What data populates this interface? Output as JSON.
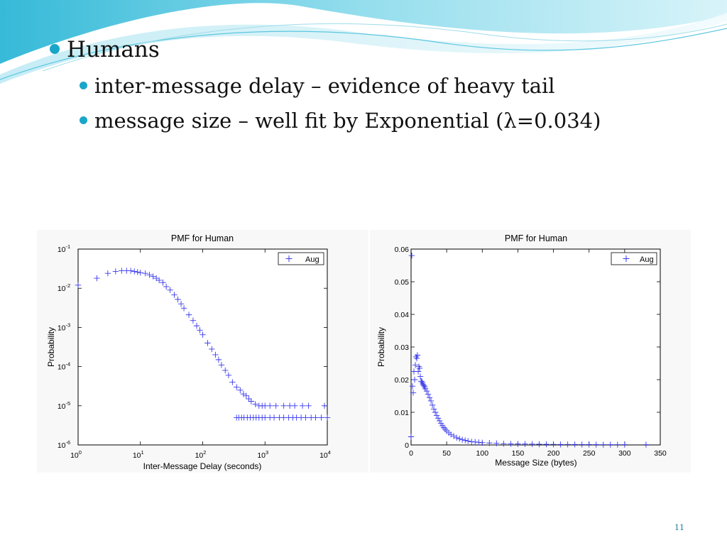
{
  "bullets": {
    "level1": "Humans",
    "level2": [
      "inter-message delay – evidence of heavy tail",
      "message size – well fit by Exponential (λ=0.034)"
    ]
  },
  "page_number": "11",
  "colors": {
    "accent": "#1aa6c9",
    "series": "#3a3aee"
  },
  "chart_data": [
    {
      "type": "scatter",
      "title": "PMF for Human",
      "xlabel": "Inter-Message Delay (seconds)",
      "ylabel": "Probability",
      "xscale": "log",
      "yscale": "log",
      "xlim": [
        1,
        10000
      ],
      "ylim": [
        1e-06,
        0.1
      ],
      "x_ticks": [
        {
          "base": "10",
          "exp": "0"
        },
        {
          "base": "10",
          "exp": "1"
        },
        {
          "base": "10",
          "exp": "2"
        },
        {
          "base": "10",
          "exp": "3"
        },
        {
          "base": "10",
          "exp": "4"
        }
      ],
      "y_ticks": [
        {
          "base": "10",
          "exp": "-6"
        },
        {
          "base": "10",
          "exp": "-5"
        },
        {
          "base": "10",
          "exp": "-4"
        },
        {
          "base": "10",
          "exp": "-3"
        },
        {
          "base": "10",
          "exp": "-2"
        },
        {
          "base": "10",
          "exp": "-1"
        }
      ],
      "legend": "top-right",
      "grid": false,
      "series": [
        {
          "name": "Aug",
          "x": [
            1,
            2,
            3,
            4,
            5,
            6,
            7,
            8,
            9,
            10,
            12,
            14,
            16,
            18,
            20,
            23,
            26,
            30,
            35,
            40,
            45,
            50,
            60,
            70,
            80,
            90,
            100,
            120,
            140,
            160,
            180,
            200,
            230,
            260,
            300,
            350,
            400,
            450,
            500,
            550,
            600,
            700,
            800,
            900,
            1000,
            1200,
            1500,
            2000,
            2500,
            3000,
            4000,
            5000,
            9000,
            350,
            380,
            420,
            460,
            520,
            580,
            650,
            720,
            800,
            900,
            1000,
            1200,
            1400,
            1700,
            2000,
            2400,
            2800,
            3200,
            3800,
            4500,
            5500,
            6500,
            8000,
            10000
          ],
          "y": [
            0.012,
            0.018,
            0.024,
            0.027,
            0.028,
            0.028,
            0.028,
            0.027,
            0.026,
            0.025,
            0.024,
            0.022,
            0.02,
            0.018,
            0.016,
            0.014,
            0.011,
            0.009,
            0.0068,
            0.0052,
            0.004,
            0.0031,
            0.0021,
            0.0015,
            0.0011,
            0.00085,
            0.00065,
            0.0004,
            0.00028,
            0.0002,
            0.00015,
            0.00011,
            8e-05,
            6e-05,
            4e-05,
            3e-05,
            2.5e-05,
            2e-05,
            1.8e-05,
            1.5e-05,
            1.3e-05,
            1.1e-05,
            1e-05,
            1e-05,
            1e-05,
            1e-05,
            1e-05,
            1e-05,
            1e-05,
            1e-05,
            1e-05,
            1e-05,
            1e-05,
            5e-06,
            5e-06,
            5e-06,
            5e-06,
            5e-06,
            5e-06,
            5e-06,
            5e-06,
            5e-06,
            5e-06,
            5e-06,
            5e-06,
            5e-06,
            5e-06,
            5e-06,
            5e-06,
            5e-06,
            5e-06,
            5e-06,
            5e-06,
            5e-06,
            5e-06,
            5e-06,
            5e-06
          ]
        }
      ]
    },
    {
      "type": "scatter",
      "title": "PMF for Human",
      "xlabel": "Message Size (bytes)",
      "ylabel": "Probability",
      "xlim": [
        0,
        350
      ],
      "ylim": [
        0,
        0.06
      ],
      "x_ticks": [
        "0",
        "50",
        "100",
        "150",
        "200",
        "250",
        "300",
        "350"
      ],
      "y_ticks": [
        "0",
        "0.01",
        "0.02",
        "0.03",
        "0.04",
        "0.05",
        "0.06"
      ],
      "legend": "top-right",
      "grid": false,
      "series": [
        {
          "name": "Aug",
          "x": [
            0,
            1,
            2,
            3,
            4,
            5,
            6,
            7,
            8,
            9,
            10,
            11,
            12,
            13,
            14,
            15,
            16,
            17,
            18,
            19,
            20,
            22,
            24,
            26,
            28,
            30,
            32,
            34,
            36,
            38,
            40,
            42,
            44,
            46,
            48,
            50,
            53,
            56,
            60,
            64,
            68,
            72,
            76,
            80,
            85,
            90,
            95,
            100,
            110,
            120,
            130,
            140,
            150,
            160,
            170,
            180,
            190,
            200,
            210,
            220,
            230,
            240,
            250,
            260,
            270,
            280,
            290,
            300,
            330
          ],
          "y": [
            0.0025,
            0.058,
            0.018,
            0.016,
            0.0225,
            0.02,
            0.0245,
            0.027,
            0.0265,
            0.0275,
            0.0225,
            0.024,
            0.0235,
            0.021,
            0.0195,
            0.0195,
            0.019,
            0.0185,
            0.0182,
            0.0178,
            0.0172,
            0.0165,
            0.0155,
            0.0145,
            0.0135,
            0.0122,
            0.011,
            0.01,
            0.009,
            0.0082,
            0.0074,
            0.0066,
            0.0059,
            0.0053,
            0.0048,
            0.0043,
            0.0037,
            0.0032,
            0.0027,
            0.0022,
            0.0019,
            0.0016,
            0.0014,
            0.0012,
            0.001,
            0.0009,
            0.0008,
            0.0007,
            0.0006,
            0.0005,
            0.0004,
            0.00035,
            0.0003,
            0.00028,
            0.00025,
            0.00022,
            0.0002,
            0.00018,
            0.00016,
            0.00015,
            0.00014,
            0.00013,
            0.00012,
            0.00011,
            0.0001,
            0.0001,
            0.0001,
            0.0001,
            0.0001
          ]
        }
      ]
    }
  ]
}
